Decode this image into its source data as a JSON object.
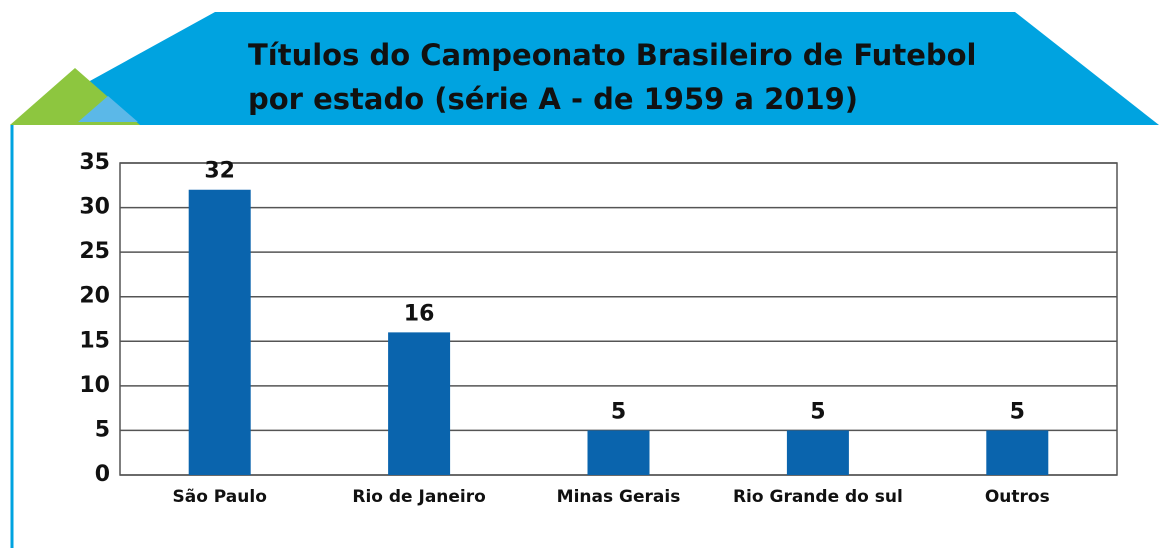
{
  "chart_data": {
    "type": "bar",
    "title": [
      "Títulos do Campeonato Brasileiro de Futebol",
      "por estado (série A - de 1959 a 2019)"
    ],
    "categories": [
      "São Paulo",
      "Rio de Janeiro",
      "Minas Gerais",
      "Rio Grande do sul",
      "Outros"
    ],
    "values": [
      32,
      16,
      5,
      5,
      5
    ],
    "color": "#0a64ad",
    "ylim": [
      0,
      35
    ],
    "yticks": [
      0,
      5,
      10,
      15,
      20,
      25,
      30,
      35
    ],
    "grid": true
  }
}
